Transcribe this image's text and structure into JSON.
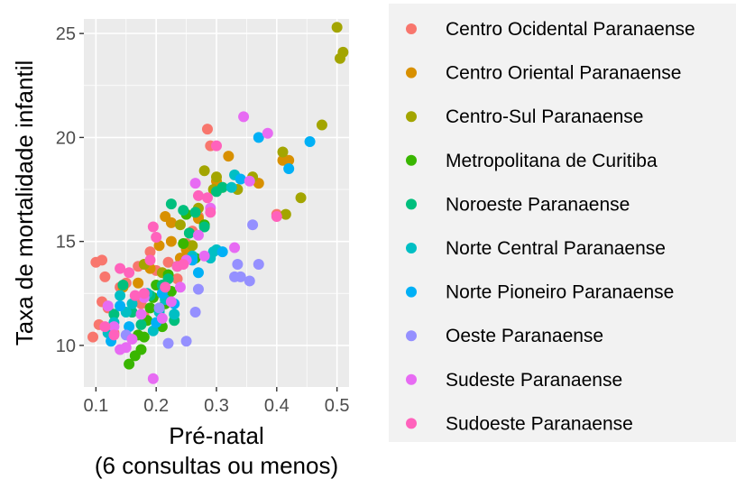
{
  "chart_data": {
    "type": "scatter",
    "xlabel": [
      "Pré-natal",
      "(6 consultas ou menos)"
    ],
    "ylabel": "Taxa de mortalidade infantil",
    "xlim": [
      0.08,
      0.52
    ],
    "ylim": [
      8.0,
      25.7
    ],
    "xticks": [
      0.1,
      0.2,
      0.3,
      0.4,
      0.5
    ],
    "xtick_labels": [
      "0.1",
      "0.2",
      "0.3",
      "0.4",
      "0.5"
    ],
    "yticks": [
      10,
      15,
      20,
      25
    ],
    "ytick_labels": [
      "10",
      "15",
      "20",
      "25"
    ],
    "grid": true,
    "legend_position": "right",
    "series": [
      {
        "name": "Centro Ocidental Paranaense",
        "color": "#F8766D",
        "points": [
          [
            0.1,
            14.0
          ],
          [
            0.11,
            14.1
          ],
          [
            0.115,
            13.3
          ],
          [
            0.105,
            11.0
          ],
          [
            0.095,
            10.4
          ],
          [
            0.11,
            12.1
          ],
          [
            0.12,
            11.8
          ],
          [
            0.13,
            10.6
          ],
          [
            0.14,
            12.8
          ],
          [
            0.15,
            13.0
          ],
          [
            0.16,
            11.6
          ],
          [
            0.17,
            13.8
          ],
          [
            0.175,
            12.0
          ],
          [
            0.18,
            11.4
          ],
          [
            0.19,
            14.5
          ],
          [
            0.2,
            13.6
          ],
          [
            0.21,
            12.5
          ],
          [
            0.22,
            14.0
          ],
          [
            0.235,
            13.2
          ],
          [
            0.25,
            14.9
          ],
          [
            0.26,
            15.5
          ],
          [
            0.27,
            16.2
          ],
          [
            0.285,
            20.4
          ],
          [
            0.29,
            19.6
          ],
          [
            0.4,
            16.3
          ]
        ]
      },
      {
        "name": "Centro Oriental Paranaense",
        "color": "#D89000",
        "points": [
          [
            0.145,
            12.8
          ],
          [
            0.17,
            13.0
          ],
          [
            0.19,
            13.7
          ],
          [
            0.205,
            14.8
          ],
          [
            0.215,
            16.2
          ],
          [
            0.225,
            15.9
          ],
          [
            0.225,
            15.0
          ],
          [
            0.24,
            14.2
          ],
          [
            0.25,
            14.6
          ],
          [
            0.27,
            16.1
          ],
          [
            0.3,
            17.9
          ],
          [
            0.31,
            17.6
          ],
          [
            0.32,
            19.1
          ],
          [
            0.37,
            17.8
          ],
          [
            0.41,
            18.9
          ],
          [
            0.42,
            18.9
          ]
        ]
      },
      {
        "name": "Centro-Sul Paranaense",
        "color": "#A3A500",
        "points": [
          [
            0.18,
            13.9
          ],
          [
            0.21,
            13.5
          ],
          [
            0.24,
            15.8
          ],
          [
            0.26,
            14.8
          ],
          [
            0.27,
            16.6
          ],
          [
            0.28,
            18.4
          ],
          [
            0.295,
            17.5
          ],
          [
            0.3,
            18.1
          ],
          [
            0.335,
            17.5
          ],
          [
            0.36,
            18.1
          ],
          [
            0.41,
            19.3
          ],
          [
            0.415,
            16.3
          ],
          [
            0.44,
            17.1
          ],
          [
            0.475,
            20.6
          ],
          [
            0.5,
            25.3
          ],
          [
            0.505,
            23.8
          ],
          [
            0.51,
            24.1
          ]
        ]
      },
      {
        "name": "Metropolitana de Curitiba",
        "color": "#39B600",
        "points": [
          [
            0.155,
            9.1
          ],
          [
            0.165,
            9.5
          ],
          [
            0.17,
            10.5
          ],
          [
            0.175,
            9.8
          ],
          [
            0.18,
            10.4
          ],
          [
            0.185,
            11.2
          ],
          [
            0.19,
            11.8
          ],
          [
            0.195,
            12.3
          ],
          [
            0.2,
            12.9
          ],
          [
            0.205,
            11.7
          ],
          [
            0.21,
            10.9
          ],
          [
            0.215,
            12.0
          ],
          [
            0.22,
            13.4
          ],
          [
            0.225,
            12.6
          ],
          [
            0.235,
            13.8
          ],
          [
            0.245,
            14.9
          ],
          [
            0.25,
            16.3
          ],
          [
            0.255,
            15.4
          ],
          [
            0.265,
            14.2
          ],
          [
            0.28,
            15.8
          ]
        ]
      },
      {
        "name": "Noroeste Paranaense",
        "color": "#00BF7D",
        "points": [
          [
            0.13,
            11.5
          ],
          [
            0.145,
            12.9
          ],
          [
            0.16,
            11.6
          ],
          [
            0.175,
            11.0
          ],
          [
            0.19,
            12.4
          ],
          [
            0.21,
            12.9
          ],
          [
            0.22,
            13.2
          ],
          [
            0.225,
            16.8
          ],
          [
            0.23,
            11.2
          ],
          [
            0.245,
            16.5
          ],
          [
            0.255,
            15.4
          ],
          [
            0.265,
            16.4
          ],
          [
            0.28,
            15.7
          ],
          [
            0.3,
            17.4
          ],
          [
            0.31,
            17.6
          ]
        ]
      },
      {
        "name": "Norte Central Paranaense",
        "color": "#00BFC4",
        "points": [
          [
            0.12,
            10.6
          ],
          [
            0.13,
            11.1
          ],
          [
            0.14,
            12.4
          ],
          [
            0.15,
            11.6
          ],
          [
            0.16,
            12.0
          ],
          [
            0.185,
            12.5
          ],
          [
            0.195,
            10.7
          ],
          [
            0.205,
            11.6
          ],
          [
            0.215,
            12.2
          ],
          [
            0.23,
            11.5
          ],
          [
            0.26,
            14.3
          ],
          [
            0.29,
            14.2
          ],
          [
            0.295,
            14.5
          ],
          [
            0.3,
            14.6
          ],
          [
            0.325,
            17.6
          ],
          [
            0.33,
            18.2
          ]
        ]
      },
      {
        "name": "Norte Pioneiro Paranaense",
        "color": "#00B0F6",
        "points": [
          [
            0.125,
            10.2
          ],
          [
            0.14,
            11.9
          ],
          [
            0.155,
            10.9
          ],
          [
            0.2,
            11.1
          ],
          [
            0.21,
            12.5
          ],
          [
            0.23,
            12.0
          ],
          [
            0.26,
            14.1
          ],
          [
            0.27,
            13.5
          ],
          [
            0.31,
            14.5
          ],
          [
            0.34,
            18.0
          ],
          [
            0.37,
            20.0
          ],
          [
            0.42,
            18.5
          ],
          [
            0.455,
            19.8
          ]
        ]
      },
      {
        "name": "Oeste Paranaense",
        "color": "#9590FF",
        "points": [
          [
            0.15,
            10.5
          ],
          [
            0.205,
            11.8
          ],
          [
            0.22,
            10.1
          ],
          [
            0.25,
            10.2
          ],
          [
            0.265,
            11.6
          ],
          [
            0.27,
            12.7
          ],
          [
            0.33,
            13.3
          ],
          [
            0.335,
            13.9
          ],
          [
            0.34,
            13.3
          ],
          [
            0.355,
            13.1
          ],
          [
            0.36,
            15.8
          ],
          [
            0.37,
            13.9
          ]
        ]
      },
      {
        "name": "Sudeste Paranaense",
        "color": "#E76BF3",
        "points": [
          [
            0.12,
            11.9
          ],
          [
            0.13,
            10.9
          ],
          [
            0.14,
            9.8
          ],
          [
            0.15,
            9.9
          ],
          [
            0.16,
            10.3
          ],
          [
            0.175,
            11.5
          ],
          [
            0.18,
            12.3
          ],
          [
            0.195,
            8.4
          ],
          [
            0.21,
            11.3
          ],
          [
            0.225,
            12.1
          ],
          [
            0.24,
            12.8
          ],
          [
            0.25,
            14.1
          ],
          [
            0.265,
            17.8
          ],
          [
            0.27,
            15.3
          ],
          [
            0.28,
            14.3
          ],
          [
            0.29,
            16.6
          ],
          [
            0.33,
            14.7
          ],
          [
            0.345,
            21.0
          ],
          [
            0.355,
            17.9
          ],
          [
            0.385,
            20.2
          ]
        ]
      },
      {
        "name": "Sudoeste Paranaense",
        "color": "#FF62BC",
        "points": [
          [
            0.115,
            10.9
          ],
          [
            0.13,
            10.5
          ],
          [
            0.14,
            13.7
          ],
          [
            0.155,
            13.5
          ],
          [
            0.165,
            12.4
          ],
          [
            0.18,
            12.5
          ],
          [
            0.19,
            14.1
          ],
          [
            0.195,
            15.7
          ],
          [
            0.2,
            15.2
          ],
          [
            0.215,
            12.8
          ],
          [
            0.235,
            13.8
          ],
          [
            0.245,
            13.9
          ],
          [
            0.27,
            17.2
          ],
          [
            0.285,
            17.1
          ],
          [
            0.29,
            16.4
          ],
          [
            0.3,
            19.6
          ],
          [
            0.4,
            16.2
          ]
        ]
      }
    ]
  }
}
